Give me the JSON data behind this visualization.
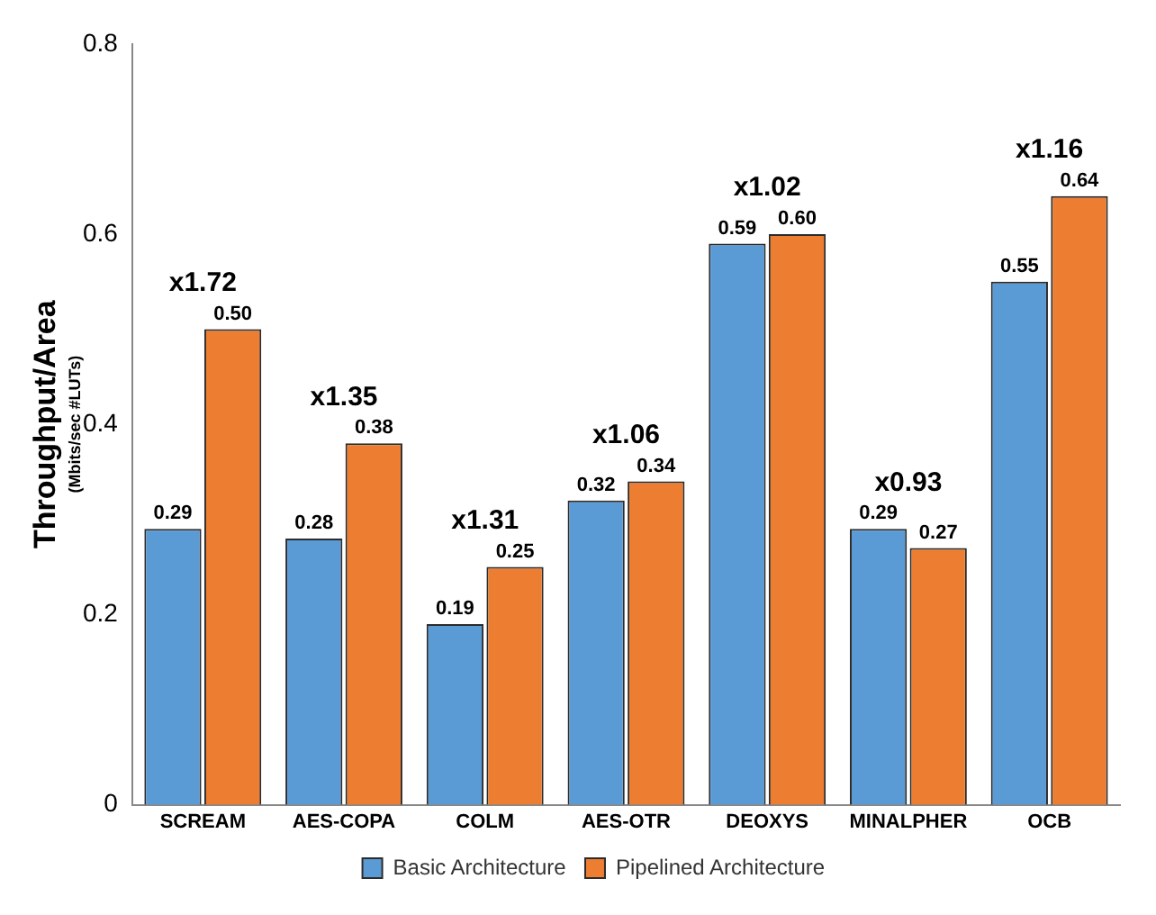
{
  "chart_data": {
    "type": "bar",
    "ylabel": "Throughput/Area\n(Mbits/sec #LUTs)",
    "categories": [
      "SCREAM",
      "AES-COPA",
      "COLM",
      "AES-OTR",
      "DEOXYS",
      "MINALPHER",
      "OCB"
    ],
    "series": [
      {
        "name": "Basic Architecture",
        "color": "#5b9bd5",
        "values": [
          0.29,
          0.28,
          0.19,
          0.32,
          0.59,
          0.29,
          0.55
        ],
        "value_labels": [
          "0.29",
          "0.28",
          "0.19",
          "0.32",
          "0.59",
          "0.29",
          "0.55"
        ]
      },
      {
        "name": "Pipelined Architecture",
        "color": "#ed7d31",
        "values": [
          0.5,
          0.38,
          0.25,
          0.34,
          0.6,
          0.27,
          0.64
        ],
        "value_labels": [
          "0.50",
          "0.38",
          "0.25",
          "0.34",
          "0.60",
          "0.27",
          "0.64"
        ]
      }
    ],
    "annotations": [
      {
        "text": "x1.72",
        "x": "SCREAM",
        "y": 0.5
      },
      {
        "text": "x1.35",
        "x": "AES-COPA",
        "y": 0.38
      },
      {
        "text": "x1.31",
        "x": "COLM",
        "y": 0.25
      },
      {
        "text": "x1.06",
        "x": "AES-OTR",
        "y": 0.34
      },
      {
        "text": "x1.02",
        "x": "DEOXYS",
        "y": 0.6
      },
      {
        "text": "x0.93",
        "x": "MINALPHER",
        "y": 0.29
      },
      {
        "text": "x1.16",
        "x": "OCB",
        "y": 0.64
      }
    ],
    "ylim": [
      0,
      0.8
    ],
    "yticks": [
      0,
      0.2,
      0.4,
      0.6,
      0.8
    ],
    "grid": false,
    "legend": "bottom"
  }
}
